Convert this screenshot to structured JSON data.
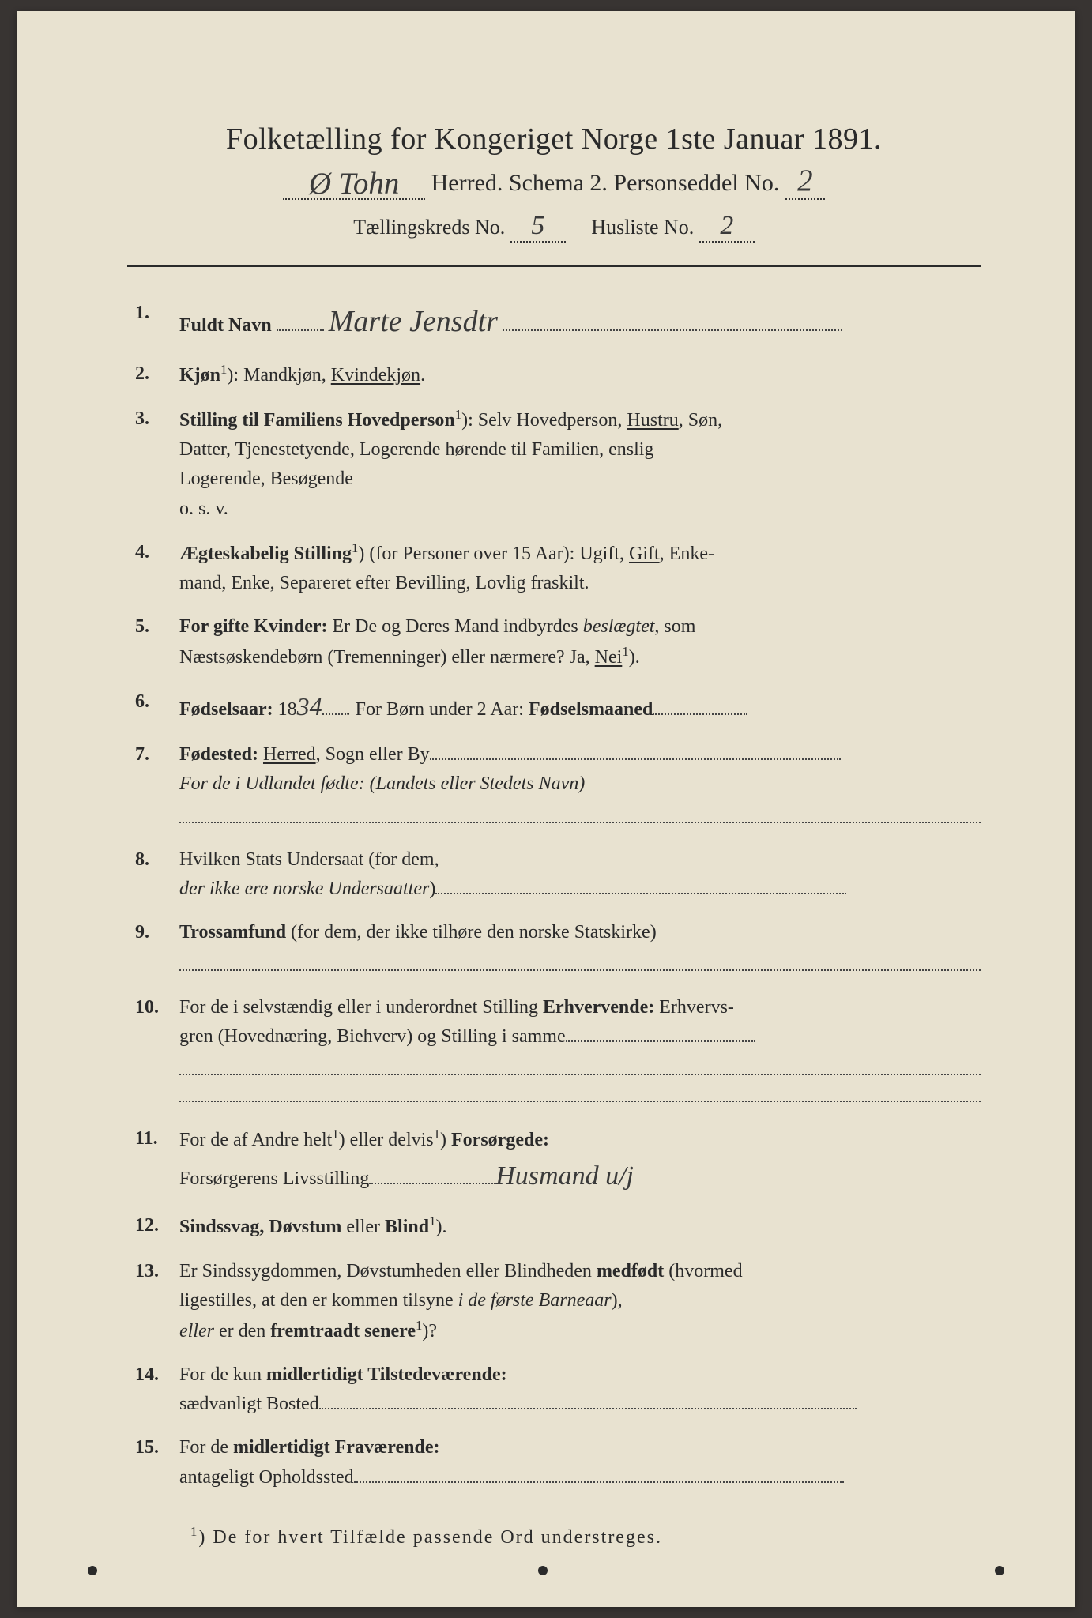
{
  "header": {
    "title": "Folketælling for Kongeriget Norge 1ste Januar 1891.",
    "herred_hw": "Ø Tohn",
    "line2_mid": "Herred.   Schema 2.   Personseddel No.",
    "personseddel_no_hw": "2",
    "line3_a": "Tællingskreds No.",
    "kreds_no_hw": "5",
    "line3_b": "Husliste No.",
    "husliste_no_hw": "2"
  },
  "entries": [
    {
      "num": "1.",
      "label": "Fuldt Navn",
      "handwritten": "Marte Jensdtr",
      "trailing_dots_width": 430
    },
    {
      "num": "2.",
      "label": "Kjøn",
      "sup": "1",
      "after_label": "):  Mandkjøn,  ",
      "underlined": "Kvindekjøn",
      "tail": "."
    },
    {
      "num": "3.",
      "label": "Stilling til Familiens Hovedperson",
      "sup": "1",
      "after_label": "):  Selv Hovedperson,  ",
      "underlined": "Hustru",
      "tail": ",  Søn,",
      "cont": [
        "Datter,  Tjenestetyende,  Logerende  hørende  til  Familien,  enslig",
        "Logerende,  Besøgende",
        "o. s. v."
      ]
    },
    {
      "num": "4.",
      "label": "Ægteskabelig Stilling",
      "sup": "1",
      "after_label": ") (for Personer over 15 Aar):  Ugift,  ",
      "underlined": "Gift",
      "tail": ",  Enke-",
      "cont": [
        "mand,  Enke,  Separeret efter Bevilling,  Lovlig fraskilt."
      ]
    },
    {
      "num": "5.",
      "label": "For gifte Kvinder:",
      "after_label": "  Er De og Deres Mand indbyrdes ",
      "italic_word": "beslægtet",
      "tail": ",  som",
      "cont_special": {
        "pre": "Næstsøskendebørn (Tremenninger) eller nærmere?   Ja,  ",
        "underlined": "Nei",
        "sup": "1",
        "post": ")."
      }
    },
    {
      "num": "6.",
      "label": "Fødselsaar:",
      "after_label": "  18",
      "handwritten": "34",
      "mid_dots": 30,
      "after_hw": ".   For Børn under 2 Aar: ",
      "bold_tail": "Fødselsmaaned",
      "trailing_dots_width": 120
    },
    {
      "num": "7.",
      "label": "Fødested:",
      "after_label": "  ",
      "underlined": "Herred",
      "tail": ",  Sogn eller By",
      "trailing_dots_width": 520,
      "cont_italic": "For de i Udlandet fødte:  (Landets eller Stedets Navn)",
      "full_dotted_after": true
    },
    {
      "num": "8.",
      "plain": "Hvilken Stats Undersaat (for dem,",
      "cont_italic_inline": "der ikke ere norske Undersaatter",
      "cont_close": ")",
      "trailing_dots_width": 520
    },
    {
      "num": "9.",
      "label": "Trossamfund",
      "after_label": "  (for dem,  der ikke tilhøre  den  norske  Statskirke)",
      "full_dotted_after": true
    },
    {
      "num": "10.",
      "plain_pre": "For de i selvstændig eller i underordnet Stilling ",
      "bold_inline": "Erhvervende:",
      "plain_post": "  Erhvervs-",
      "cont": [
        "gren (Hovednæring, Biehverv) og Stilling i samme"
      ],
      "cont_dots_width": 240,
      "full_dotted_after": true,
      "double_dotted": true
    },
    {
      "num": "11.",
      "plain_pre": "For de af Andre helt",
      "sup": "1",
      "mid": ") eller delvis",
      "sup2": "1",
      "mid2": ") ",
      "bold_inline": "Forsørgede:",
      "cont_label": "Forsørgerens Livsstilling",
      "cont_dots_width": 160,
      "cont_handwritten": "Husmand u/j"
    },
    {
      "num": "12.",
      "label": "Sindssvag, Døvstum",
      "after_label": " eller ",
      "bold_inline": "Blind",
      "sup": "1",
      "tail": ")."
    },
    {
      "num": "13.",
      "plain_pre": "Er Sindssygdommen, Døvstumheden eller Blindheden ",
      "bold_inline": "medfødt",
      "plain_post": " (hvormed",
      "cont_mixed": [
        {
          "pre": "ligestilles, at den er kommen tilsyne ",
          "italic": "i de første Barneaar",
          "post": "),"
        },
        {
          "italic_pre": "eller",
          "pre2": " er den ",
          "bold": "fremtraadt senere",
          "sup": "1",
          "post": ")?"
        }
      ]
    },
    {
      "num": "14.",
      "plain_pre": "For de kun ",
      "bold_inline": "midlertidigt Tilstedeværende:",
      "cont_label": "sædvanligt Bosted",
      "cont_dots_width": 680
    },
    {
      "num": "15.",
      "plain_pre": "For de ",
      "bold_inline": "midlertidigt Fraværende:",
      "cont_label": "antageligt Opholdssted",
      "cont_dots_width": 620
    }
  ],
  "footnote": {
    "sup": "1",
    "text": ") De for hvert Tilfælde passende Ord understreges."
  },
  "colors": {
    "page_bg": "#e8e2d0",
    "body_bg": "#383432",
    "text": "#2a2a2a",
    "handwriting": "#3a3a3a"
  }
}
